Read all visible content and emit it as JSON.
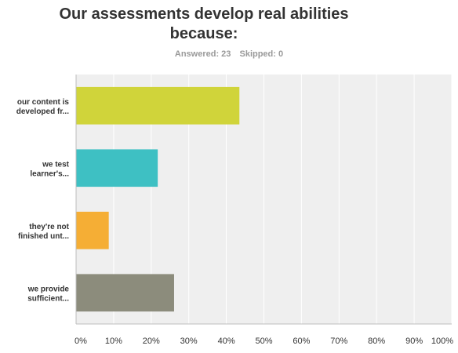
{
  "header": {
    "title_line1": "Our assessments develop real abilities",
    "title_line2": "because:",
    "answered": "Answered: 23",
    "skipped": "Skipped: 0"
  },
  "chart_data": {
    "type": "bar",
    "orientation": "horizontal",
    "title": "Our assessments develop real abilities because:",
    "categories": [
      [
        "our content is",
        "developed fr..."
      ],
      [
        "we test",
        "learner's..."
      ],
      [
        "they're not",
        "finished unt..."
      ],
      [
        "we provide",
        "sufficient..."
      ]
    ],
    "values": [
      43.48,
      21.74,
      8.7,
      26.09
    ],
    "colors": [
      "#d0d43a",
      "#3ec0c3",
      "#f5ae35",
      "#8c8c7c"
    ],
    "xlim": [
      0,
      100
    ],
    "x_ticks": [
      "0%",
      "10%",
      "20%",
      "30%",
      "40%",
      "50%",
      "60%",
      "70%",
      "80%",
      "90%",
      "100%"
    ],
    "grid": true
  }
}
